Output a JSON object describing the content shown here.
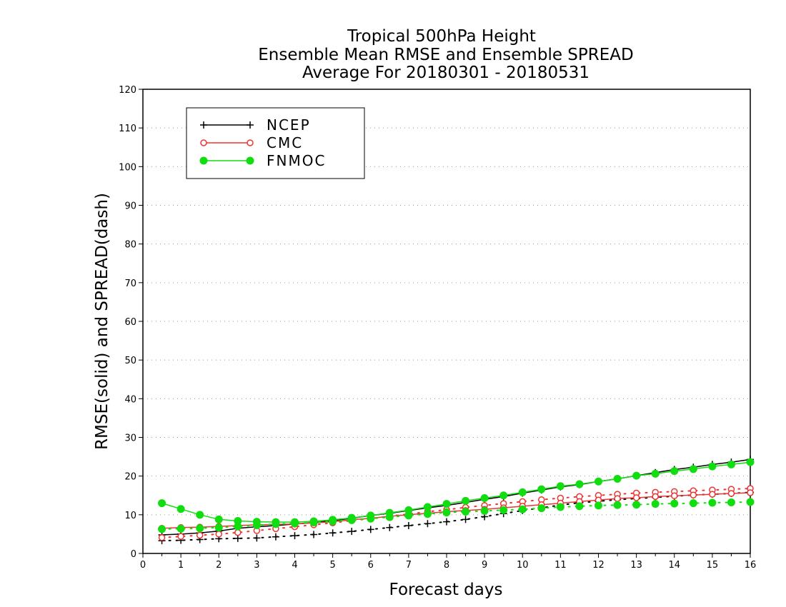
{
  "chart_data": {
    "type": "line",
    "title": [
      "Tropical 500hPa Height",
      "Ensemble Mean RMSE and Ensemble SPREAD",
      "Average For 20180301 - 20180531"
    ],
    "xlabel": "Forecast days",
    "ylabel": "RMSE(solid) and SPREAD(dash)",
    "xlim": [
      0,
      16
    ],
    "ylim": [
      0,
      120
    ],
    "xticks": [
      0,
      1,
      2,
      3,
      4,
      5,
      6,
      7,
      8,
      9,
      10,
      11,
      12,
      13,
      14,
      15,
      16
    ],
    "yticks": [
      0,
      10,
      20,
      30,
      40,
      50,
      60,
      70,
      80,
      90,
      100,
      110,
      120
    ],
    "grid": "horizontal dotted",
    "legend_position": "top-left",
    "x": [
      0.5,
      1,
      1.5,
      2,
      2.5,
      3,
      3.5,
      4,
      4.5,
      5,
      5.5,
      6,
      6.5,
      7,
      7.5,
      8,
      8.5,
      9,
      9.5,
      10,
      10.5,
      11,
      11.5,
      12,
      12.5,
      13,
      13.5,
      14,
      14.5,
      15,
      15.5,
      16
    ],
    "series": [
      {
        "name": "NCEP",
        "color": "#000000",
        "marker": "plus",
        "rmse": [
          4.8,
          5.0,
          5.3,
          5.8,
          6.5,
          6.9,
          7.2,
          7.6,
          8.0,
          8.5,
          9.1,
          9.8,
          10.4,
          11.1,
          11.8,
          12.4,
          13.2,
          14.0,
          14.7,
          15.6,
          16.4,
          17.2,
          17.8,
          18.6,
          19.3,
          20.1,
          20.9,
          21.7,
          22.3,
          23.0,
          23.6,
          24.3
        ],
        "spread": [
          3.3,
          3.4,
          3.6,
          3.8,
          3.9,
          4.0,
          4.3,
          4.6,
          4.9,
          5.3,
          5.7,
          6.2,
          6.7,
          7.2,
          7.7,
          8.2,
          8.8,
          9.5,
          10.3,
          11.1,
          11.8,
          12.5,
          13.1,
          13.5,
          13.9,
          14.2,
          14.5,
          14.8,
          15.1,
          15.3,
          15.5,
          15.8
        ]
      },
      {
        "name": "CMC",
        "color": "#ee3333",
        "marker": "open-circle",
        "rmse": [
          6.5,
          6.7,
          6.8,
          7.0,
          7.2,
          7.4,
          7.5,
          7.6,
          7.9,
          8.2,
          8.7,
          9.1,
          9.6,
          10.0,
          10.4,
          10.8,
          11.1,
          11.4,
          11.8,
          12.2,
          12.6,
          13.0,
          13.4,
          13.8,
          14.2,
          14.4,
          14.7,
          14.9,
          15.1,
          15.3,
          15.5,
          15.7
        ],
        "spread": [
          4.1,
          4.4,
          4.7,
          5.0,
          5.4,
          5.9,
          6.4,
          6.9,
          7.4,
          7.9,
          8.5,
          9.0,
          9.6,
          10.2,
          10.8,
          11.3,
          11.9,
          12.4,
          12.9,
          13.4,
          13.9,
          14.3,
          14.7,
          15.0,
          15.3,
          15.6,
          15.8,
          16.0,
          16.2,
          16.4,
          16.6,
          16.8
        ]
      },
      {
        "name": "FNMOC",
        "color": "#11dd11",
        "marker": "filled-circle",
        "rmse": [
          13.0,
          11.5,
          10.0,
          8.8,
          8.4,
          8.2,
          8.1,
          8.1,
          8.3,
          8.7,
          9.2,
          9.8,
          10.5,
          11.2,
          12.0,
          12.8,
          13.6,
          14.3,
          15.0,
          15.8,
          16.6,
          17.4,
          17.9,
          18.6,
          19.3,
          20.1,
          20.6,
          21.3,
          21.8,
          22.5,
          23.0,
          23.6
        ],
        "spread": [
          6.3,
          6.4,
          6.5,
          6.7,
          7.0,
          7.3,
          7.6,
          7.8,
          8.0,
          8.3,
          8.6,
          9.0,
          9.4,
          9.8,
          10.2,
          10.6,
          10.8,
          11.0,
          11.2,
          11.4,
          11.7,
          12.0,
          12.2,
          12.4,
          12.5,
          12.6,
          12.8,
          12.9,
          13.0,
          13.1,
          13.2,
          13.3
        ]
      }
    ]
  }
}
